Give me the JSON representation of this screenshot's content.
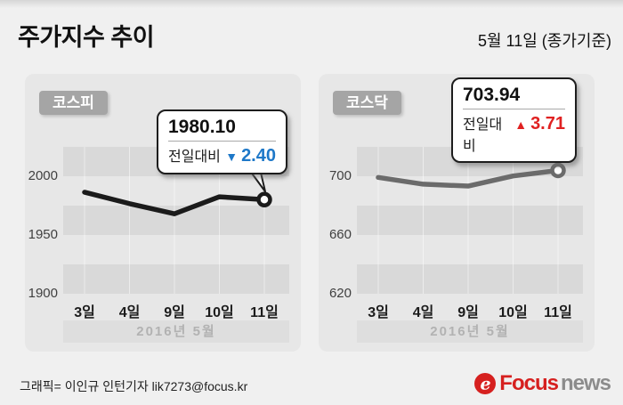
{
  "header": {
    "title": "주가지수 추이",
    "date_note": "5월 11일 (종가기준)"
  },
  "chart_data": [
    {
      "type": "line",
      "title": "코스피",
      "categories": [
        "3일",
        "4일",
        "9일",
        "10일",
        "11일"
      ],
      "values": [
        1986.4,
        1976.7,
        1968.0,
        1982.5,
        1980.1
      ],
      "ylim": [
        1900,
        2025
      ],
      "yticks": [
        1900,
        1950,
        2000
      ],
      "xlabel": "2016년 5월",
      "line_color": "#1b1b1b",
      "grid": "horizontal gray stripes every 25pts, light vertical lines at ticks",
      "callout": {
        "value": "1980.10",
        "label": "전일대비",
        "direction": "down",
        "symbol": "▼",
        "delta": "2.40",
        "delta_color": "#1e78c8"
      }
    },
    {
      "type": "line",
      "title": "코스닥",
      "categories": [
        "3일",
        "4일",
        "9일",
        "10일",
        "11일"
      ],
      "values": [
        699.2,
        694.6,
        693.3,
        700.2,
        703.94
      ],
      "ylim": [
        620,
        720
      ],
      "yticks": [
        620,
        660,
        700
      ],
      "xlabel": "2016년 5월",
      "line_color": "#6b6b6b",
      "grid": "horizontal gray stripes every 20pts, light vertical lines at ticks",
      "callout": {
        "value": "703.94",
        "label": "전일대비",
        "direction": "up",
        "symbol": "▲",
        "delta": "3.71",
        "delta_color": "#e02121"
      }
    }
  ],
  "footer": {
    "credit": "그래픽= 이인규 인턴기자 lik7273@focus.kr",
    "logo": {
      "icon": "focus-swirl-icon",
      "brand_primary": "Focus",
      "brand_secondary": "news",
      "brand_color": "#d6201f",
      "secondary_color": "#8c8c8c"
    }
  }
}
